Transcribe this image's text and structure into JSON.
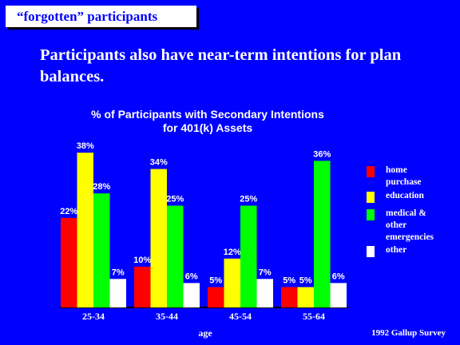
{
  "slide": {
    "tag": "“forgotten” participants",
    "headline": "Participants also have near-term intentions for plan balances.",
    "source": "1992 Gallup Survey"
  },
  "colors": {
    "background": "#0000FF",
    "home_purchase": "#FF0000",
    "education": "#FFFF00",
    "medical": "#00FF00",
    "other": "#FFFFFF"
  },
  "chart_data": {
    "type": "bar",
    "title": [
      "% of Participants with Secondary Intentions",
      "for 401(k) Assets"
    ],
    "xlabel": "age",
    "ylabel": "",
    "categories": [
      "25-34",
      "35-44",
      "45-54",
      "55-64"
    ],
    "series": [
      {
        "name": "home purchase",
        "values": [
          22,
          10,
          5,
          5
        ],
        "labels": [
          "22%",
          "10%",
          "5%",
          "5%"
        ]
      },
      {
        "name": "education",
        "values": [
          38,
          34,
          12,
          5
        ],
        "labels": [
          "38%",
          "34%",
          "12%",
          "5%"
        ]
      },
      {
        "name": "medical & other emergencies",
        "values": [
          28,
          25,
          25,
          36
        ],
        "labels": [
          "28%",
          "25%",
          "25%",
          "36%"
        ]
      },
      {
        "name": "other",
        "values": [
          7,
          6,
          7,
          6
        ],
        "labels": [
          "7%",
          "6%",
          "7%",
          "6%"
        ]
      }
    ],
    "legend": [
      "home purchase",
      "education",
      "medical & other emergencies",
      "other"
    ],
    "legend_lines": [
      [
        "home",
        "purchase"
      ],
      [
        "education"
      ],
      [
        "medical &",
        "other",
        "emergencies"
      ],
      [
        "other"
      ]
    ],
    "legend_position": "right",
    "ylim": [
      0,
      40
    ],
    "grid": false
  }
}
